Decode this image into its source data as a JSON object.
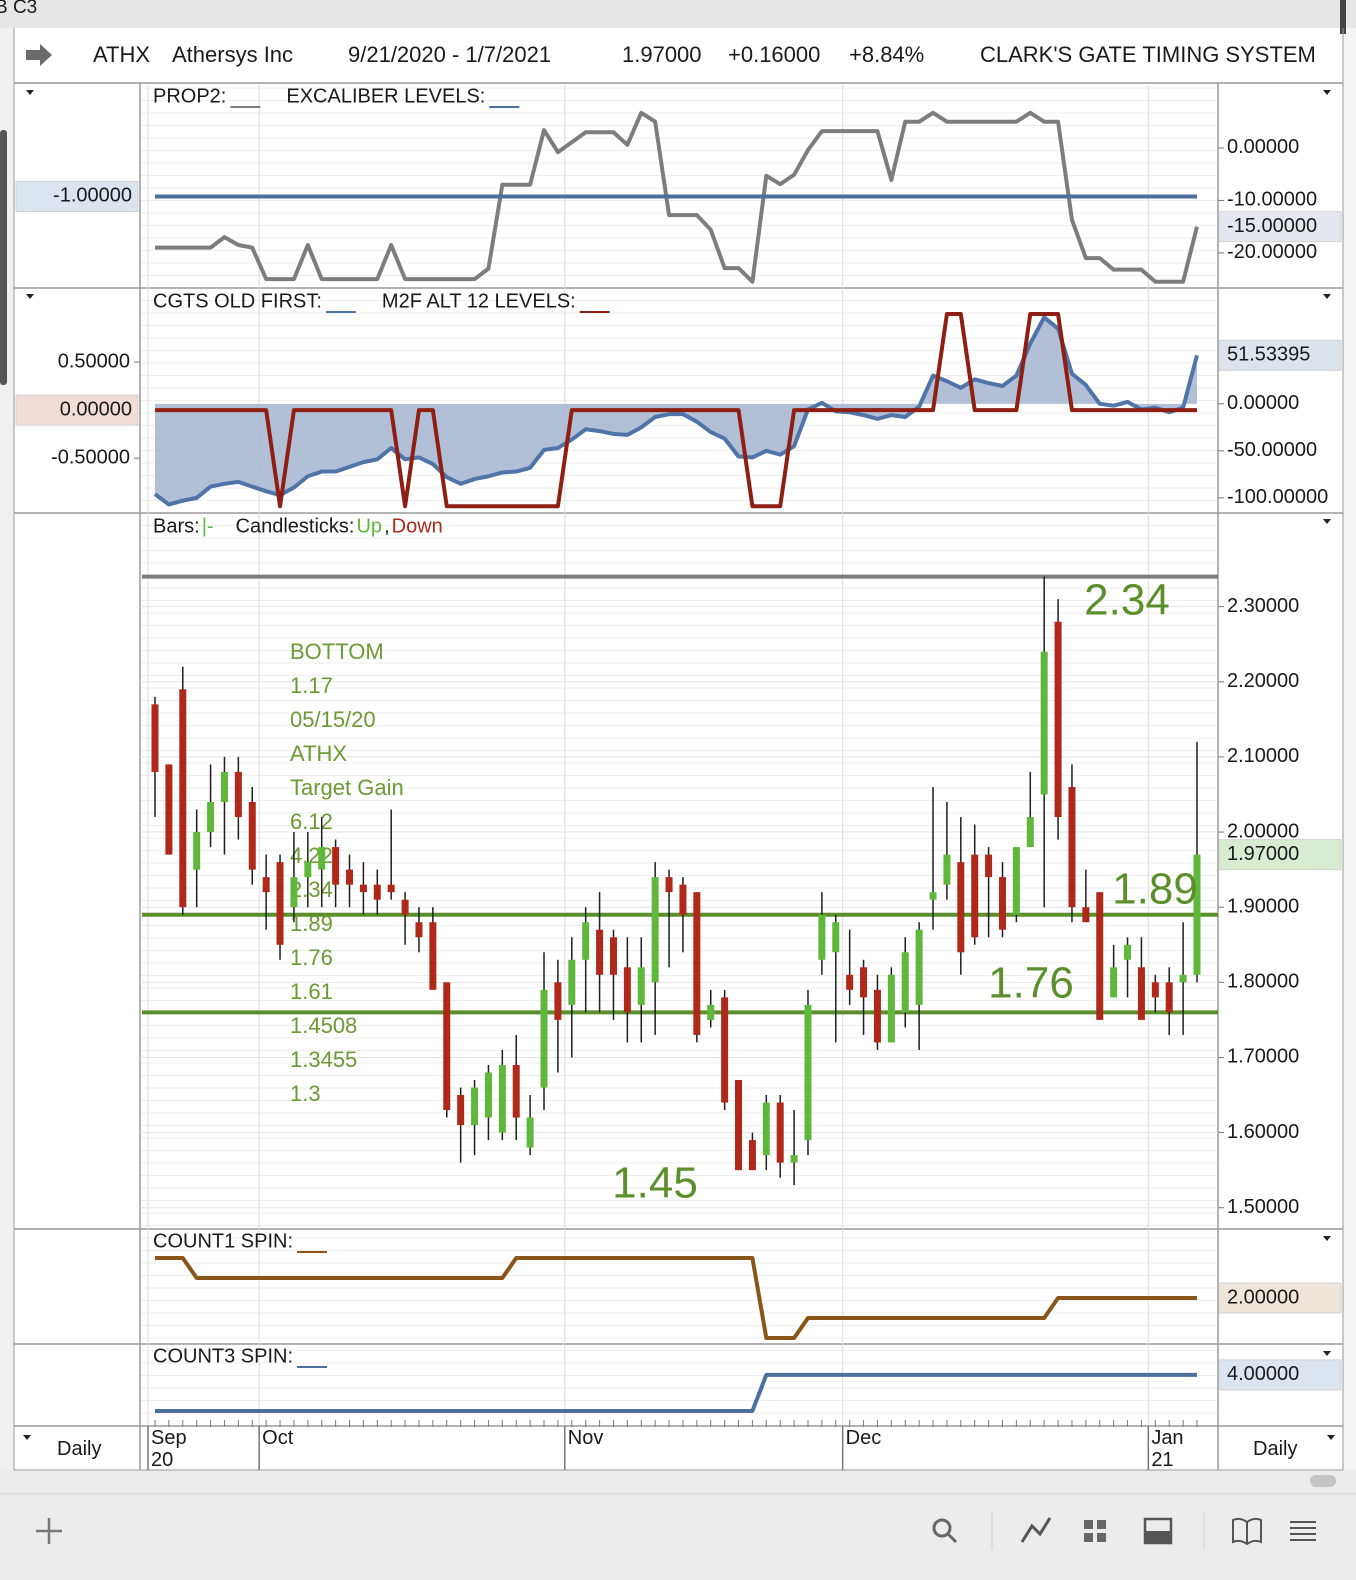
{
  "window_title": "B C3",
  "header": {
    "symbol": "ATHX",
    "name": "Athersys Inc",
    "range": "9/21/2020 - 1/7/2021",
    "last": "1.97000",
    "change": "+0.16000",
    "change_pct": "+8.84%",
    "system": "CLARK'S GATE TIMING SYSTEM"
  },
  "x_axis": {
    "period": "Daily",
    "categories": [
      "Sep\n20",
      null,
      null,
      null,
      null,
      null,
      null,
      null,
      "Oct",
      null,
      null,
      null,
      null,
      null,
      null,
      null,
      null,
      null,
      null,
      null,
      null,
      null,
      null,
      null,
      null,
      null,
      null,
      null,
      null,
      null,
      "Nov",
      null,
      null,
      null,
      null,
      null,
      null,
      null,
      null,
      null,
      null,
      null,
      null,
      null,
      null,
      null,
      null,
      null,
      null,
      null,
      "Dec",
      null,
      null,
      null,
      null,
      null,
      null,
      null,
      null,
      null,
      null,
      null,
      null,
      null,
      null,
      null,
      null,
      null,
      null,
      null,
      null,
      null,
      "Jan\n21",
      null,
      null,
      null
    ]
  },
  "chart_data": [
    {
      "type": "line",
      "ylim": [
        -2.3,
        0.6
      ],
      "y2lim": [
        -26.5,
        12
      ],
      "y2ticks": [
        {
          "value": 0,
          "label": "0.00000"
        },
        {
          "value": -10,
          "label": "-10.00000"
        },
        {
          "value": -20,
          "label": "-20.00000"
        }
      ],
      "series": [
        {
          "name": "PROP2:",
          "color": "#7d7d7d",
          "axis": "y2",
          "last_label": "-15.00000",
          "tag_color": "#e4e8ee",
          "values": [
            -19,
            -19,
            -19,
            -19,
            -19,
            -17,
            -18.5,
            -19,
            -25,
            -25,
            -25,
            -18.5,
            -25,
            -25,
            -25,
            -25,
            -25,
            -18.5,
            -25,
            -25,
            -25,
            -25,
            -25,
            -25,
            -23,
            -7,
            -7,
            -7,
            3.4,
            -0.8,
            1.1,
            3,
            3,
            3,
            0.6,
            6.7,
            5,
            -12.8,
            -12.8,
            -12.8,
            -15.6,
            -22.9,
            -22.9,
            -25.5,
            -5.3,
            -6.9,
            -5.1,
            -0.4,
            3.2,
            3.2,
            3.2,
            3.2,
            3.2,
            -6.1,
            5,
            5,
            6.7,
            5,
            5,
            5,
            5,
            5,
            5,
            6.7,
            5,
            5,
            -13.7,
            -21,
            -21,
            -23.2,
            -23.2,
            -23.2,
            -25.5,
            -25.5,
            -25.5,
            -15
          ]
        },
        {
          "name": "EXCALIBER LEVELS:",
          "color": "#4d6f9e",
          "last_label": "-1.00000",
          "tag_color": "#dbe4ef",
          "values": [
            -1,
            -1,
            -1,
            -1,
            -1,
            -1,
            -1,
            -1,
            -1,
            -1,
            -1,
            -1,
            -1,
            -1,
            -1,
            -1,
            -1,
            -1,
            -1,
            -1,
            -1,
            -1,
            -1,
            -1,
            -1,
            -1,
            -1,
            -1,
            -1,
            -1,
            -1,
            -1,
            -1,
            -1,
            -1,
            -1,
            -1,
            -1,
            -1,
            -1,
            -1,
            -1,
            -1,
            -1,
            -1,
            -1,
            -1,
            -1,
            -1,
            -1,
            -1,
            -1,
            -1,
            -1,
            -1,
            -1,
            -1,
            -1,
            -1,
            -1,
            -1,
            -1,
            -1,
            -1,
            -1,
            -1,
            -1,
            -1,
            -1,
            -1,
            -1,
            -1,
            -1,
            -1,
            -1,
            -1
          ]
        }
      ]
    },
    {
      "type": "line",
      "ylim": [
        -1.06,
        1.25
      ],
      "y2lim": [
        -115,
        121
      ],
      "yticks": [
        {
          "value": 0.5,
          "label": "0.50000"
        },
        {
          "value": -0.5,
          "label": "-0.50000"
        }
      ],
      "y2ticks": [
        {
          "value": 0,
          "label": "0.00000"
        },
        {
          "value": -50,
          "label": "-50.00000"
        },
        {
          "value": -100,
          "label": "-100.00000"
        }
      ],
      "series": [
        {
          "name": "CGTS OLD FIRST:",
          "color": "#4f74a8",
          "fill": "#a3b5d0",
          "axis": "y2",
          "last_label": "51.53395",
          "tag_color": "#dce3ec",
          "values": [
            -96,
            -107,
            -103,
            -100,
            -88,
            -85,
            -83,
            -88,
            -93,
            -97,
            -89,
            -77,
            -72,
            -72,
            -67,
            -62,
            -59,
            -47,
            -59,
            -57,
            -64,
            -78,
            -85,
            -80,
            -77,
            -73,
            -72,
            -68,
            -49,
            -47,
            -38,
            -27,
            -29,
            -32,
            -33,
            -25,
            -14,
            -11,
            -11,
            -19,
            -30,
            -37,
            -56,
            -57,
            -50,
            -54,
            -45,
            -6,
            1,
            -8,
            -9,
            -12,
            -16,
            -12,
            -14,
            -3,
            30,
            24,
            17,
            26,
            22,
            19,
            30,
            64,
            92,
            80,
            32,
            20,
            0,
            -2,
            2,
            -6,
            -4,
            -9,
            -4,
            51.53395
          ]
        },
        {
          "name": "M2F ALT 12 LEVELS:",
          "color": "#8e1f12",
          "last_label": "0.00000",
          "tag_color": "#f2dcd7",
          "values": [
            0,
            0,
            0,
            0,
            0,
            0,
            0,
            0,
            0,
            -1,
            0,
            0,
            0,
            0,
            0,
            0,
            0,
            0,
            -1,
            0,
            0,
            -1,
            -1,
            -1,
            -1,
            -1,
            -1,
            -1,
            -1,
            -1,
            0,
            0,
            0,
            0,
            0,
            0,
            0,
            0,
            0,
            0,
            0,
            0,
            0,
            -1,
            -1,
            -1,
            0,
            0,
            0,
            0,
            0,
            0,
            0,
            0,
            0,
            0,
            0,
            1,
            1,
            0,
            0,
            0,
            0,
            1,
            1,
            1,
            0,
            0,
            0,
            0,
            0,
            0,
            0,
            0,
            0,
            0
          ]
        }
      ]
    },
    {
      "type": "candlestick",
      "ylim": [
        1.473,
        2.422
      ],
      "yticks": [
        {
          "value": 1.5,
          "label": "1.50000"
        },
        {
          "value": 1.6,
          "label": "1.60000"
        },
        {
          "value": 1.7,
          "label": "1.70000"
        },
        {
          "value": 1.8,
          "label": "1.80000"
        },
        {
          "value": 1.9,
          "label": "1.90000"
        },
        {
          "value": 2.0,
          "label": "2.00000"
        },
        {
          "value": 2.1,
          "label": "2.10000"
        },
        {
          "value": 2.2,
          "label": "2.20000"
        },
        {
          "value": 2.3,
          "label": "2.30000"
        }
      ],
      "legend": {
        "bars": "Bars:",
        "bars_symbol": "|-",
        "candles": "Candlesticks:",
        "up": "Up",
        "separator": ",",
        "down": "Down"
      },
      "up_color": "#5fb83c",
      "down_color": "#b0281a",
      "wick_color": "#1e1e1e",
      "last_label": "1.97000",
      "tag_color": "#d9ecd1",
      "open": [
        2.17,
        2.09,
        2.19,
        1.95,
        2.0,
        2.04,
        2.08,
        2.04,
        1.94,
        1.96,
        1.9,
        1.94,
        1.95,
        1.98,
        1.95,
        1.93,
        1.93,
        1.93,
        1.91,
        1.88,
        1.88,
        1.8,
        1.65,
        1.61,
        1.62,
        1.6,
        1.69,
        1.58,
        1.66,
        1.8,
        1.77,
        1.83,
        1.87,
        1.86,
        1.82,
        1.77,
        1.8,
        1.94,
        1.93,
        1.92,
        1.75,
        1.78,
        1.67,
        1.59,
        1.57,
        1.64,
        1.56,
        1.59,
        1.83,
        1.84,
        1.81,
        1.82,
        1.79,
        1.72,
        1.76,
        1.77,
        1.91,
        1.93,
        1.96,
        1.97,
        1.97,
        1.94,
        1.89,
        1.98,
        2.05,
        2.28,
        2.06,
        1.9,
        1.92,
        1.78,
        1.83,
        1.82,
        1.8,
        1.8,
        1.8,
        1.81
      ],
      "high": [
        2.18,
        2.09,
        2.22,
        2.03,
        2.09,
        2.1,
        2.1,
        2.06,
        1.97,
        1.97,
        2.0,
        2.0,
        2.02,
        1.99,
        1.97,
        1.96,
        1.95,
        2.03,
        1.92,
        1.9,
        1.9,
        1.8,
        1.66,
        1.67,
        1.69,
        1.71,
        1.73,
        1.65,
        1.84,
        1.83,
        1.86,
        1.9,
        1.92,
        1.87,
        1.86,
        1.86,
        1.96,
        1.95,
        1.94,
        1.92,
        1.79,
        1.79,
        1.67,
        1.6,
        1.65,
        1.65,
        1.63,
        1.79,
        1.92,
        1.89,
        1.87,
        1.83,
        1.81,
        1.82,
        1.86,
        1.88,
        2.06,
        2.04,
        2.02,
        2.01,
        1.98,
        1.96,
        1.98,
        2.08,
        2.34,
        2.31,
        2.09,
        1.95,
        1.92,
        1.85,
        1.86,
        1.86,
        1.81,
        1.82,
        1.88,
        2.12
      ],
      "low": [
        2.02,
        1.97,
        1.89,
        1.9,
        1.98,
        1.97,
        1.99,
        1.93,
        1.87,
        1.83,
        1.88,
        1.9,
        1.9,
        1.9,
        1.9,
        1.89,
        1.89,
        1.91,
        1.85,
        1.84,
        1.79,
        1.62,
        1.56,
        1.57,
        1.59,
        1.59,
        1.59,
        1.57,
        1.63,
        1.68,
        1.7,
        1.76,
        1.76,
        1.75,
        1.72,
        1.72,
        1.73,
        1.82,
        1.84,
        1.72,
        1.74,
        1.63,
        1.55,
        1.55,
        1.55,
        1.54,
        1.53,
        1.57,
        1.81,
        1.72,
        1.77,
        1.73,
        1.71,
        1.72,
        1.74,
        1.71,
        1.87,
        1.91,
        1.81,
        1.85,
        1.86,
        1.86,
        1.88,
        1.98,
        1.9,
        1.99,
        1.88,
        1.88,
        1.75,
        1.78,
        1.78,
        1.75,
        1.76,
        1.73,
        1.73,
        1.8
      ],
      "close": [
        2.08,
        1.97,
        1.9,
        2.0,
        2.04,
        2.08,
        2.02,
        1.95,
        1.92,
        1.85,
        1.94,
        1.96,
        1.98,
        1.93,
        1.93,
        1.92,
        1.91,
        1.92,
        1.89,
        1.86,
        1.79,
        1.63,
        1.61,
        1.66,
        1.68,
        1.69,
        1.62,
        1.62,
        1.79,
        1.75,
        1.83,
        1.88,
        1.81,
        1.81,
        1.76,
        1.82,
        1.94,
        1.92,
        1.89,
        1.73,
        1.77,
        1.64,
        1.55,
        1.55,
        1.64,
        1.56,
        1.57,
        1.77,
        1.89,
        1.88,
        1.79,
        1.78,
        1.72,
        1.81,
        1.84,
        1.87,
        1.92,
        1.97,
        1.84,
        1.86,
        1.94,
        1.87,
        1.98,
        2.02,
        2.24,
        2.02,
        1.9,
        1.88,
        1.75,
        1.82,
        1.85,
        1.75,
        1.78,
        1.76,
        1.81,
        1.97
      ],
      "levels": [
        {
          "value": 2.34,
          "color": "#7d7d7d"
        },
        {
          "value": 1.89,
          "color": "#5b8f2b"
        },
        {
          "value": 1.76,
          "color": "#5b8f2b"
        }
      ],
      "annotations": [
        2.34,
        1.89,
        1.76,
        1.45
      ],
      "annotation_color": "#5b8f2b",
      "notes": [
        "BOTTOM",
        "1.17",
        "05/15/20",
        "ATHX",
        "Target Gain",
        "6.12",
        "4.22",
        "2.34",
        "1.89",
        "1.76",
        "1.61",
        "1.4508",
        "1.3455",
        "1.3"
      ],
      "notes_color": "#6c9a34"
    },
    {
      "type": "line",
      "y2lim": [
        -0.25,
        5.4
      ],
      "series": [
        {
          "name": "COUNT1 SPIN:",
          "color": "#8a5519",
          "axis": "y2",
          "last_label": "2.00000",
          "tag_color": "#efe5da",
          "values": [
            4,
            4,
            4,
            3,
            3,
            3,
            3,
            3,
            3,
            3,
            3,
            3,
            3,
            3,
            3,
            3,
            3,
            3,
            3,
            3,
            3,
            3,
            3,
            3,
            3,
            3,
            4,
            4,
            4,
            4,
            4,
            4,
            4,
            4,
            4,
            4,
            4,
            4,
            4,
            4,
            4,
            4,
            4,
            4,
            0,
            0,
            0,
            1,
            1,
            1,
            1,
            1,
            1,
            1,
            1,
            1,
            1,
            1,
            1,
            1,
            1,
            1,
            1,
            1,
            1,
            2,
            2,
            2,
            2,
            2,
            2,
            2,
            2,
            2,
            2,
            2
          ]
        }
      ]
    },
    {
      "type": "line",
      "y2lim": [
        2.61,
        4.83
      ],
      "series": [
        {
          "name": "COUNT3 SPIN:",
          "color": "#4d6f9e",
          "axis": "y2",
          "last_label": "4.00000",
          "tag_color": "#dbe4ef",
          "values": [
            3,
            3,
            3,
            3,
            3,
            3,
            3,
            3,
            3,
            3,
            3,
            3,
            3,
            3,
            3,
            3,
            3,
            3,
            3,
            3,
            3,
            3,
            3,
            3,
            3,
            3,
            3,
            3,
            3,
            3,
            3,
            3,
            3,
            3,
            3,
            3,
            3,
            3,
            3,
            3,
            3,
            3,
            3,
            3,
            4,
            4,
            4,
            4,
            4,
            4,
            4,
            4,
            4,
            4,
            4,
            4,
            4,
            4,
            4,
            4,
            4,
            4,
            4,
            4,
            4,
            4,
            4,
            4,
            4,
            4,
            4,
            4,
            4,
            4,
            4,
            4
          ]
        }
      ]
    }
  ]
}
